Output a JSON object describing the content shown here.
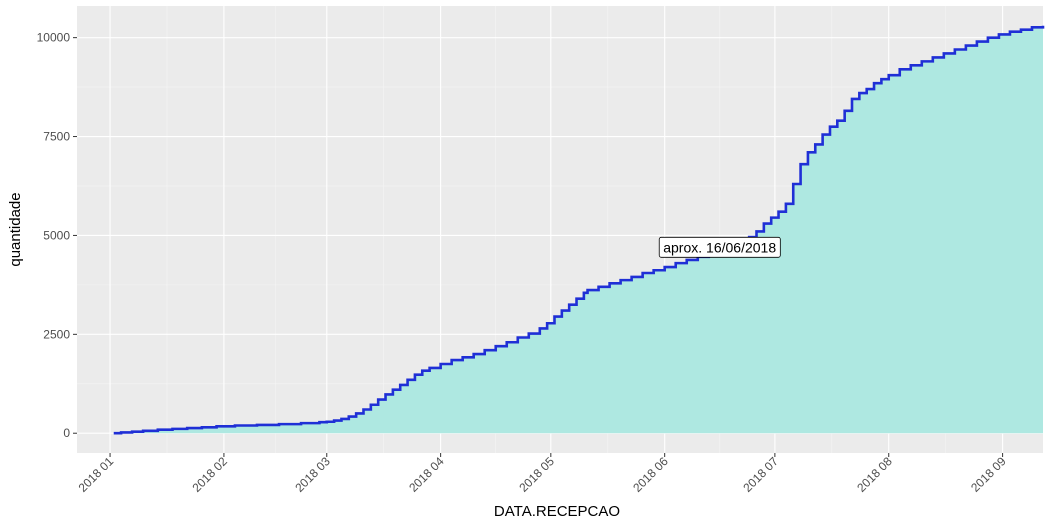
{
  "chart_data": {
    "type": "area",
    "title": "",
    "xlabel": "DATA.RECEPCAO",
    "ylabel": "quantidade",
    "x_type": "date",
    "xlim": [
      "2017-12-23",
      "2018-09-12"
    ],
    "ylim": [
      -500,
      10800
    ],
    "x_ticks": [
      {
        "date": "2018-01-01",
        "label": "2018 01"
      },
      {
        "date": "2018-02-01",
        "label": "2018 02"
      },
      {
        "date": "2018-03-01",
        "label": "2018 03"
      },
      {
        "date": "2018-04-01",
        "label": "2018 04"
      },
      {
        "date": "2018-05-01",
        "label": "2018 05"
      },
      {
        "date": "2018-06-01",
        "label": "2018 06"
      },
      {
        "date": "2018-07-01",
        "label": "2018 07"
      },
      {
        "date": "2018-08-01",
        "label": "2018 08"
      },
      {
        "date": "2018-09-01",
        "label": "2018 09"
      }
    ],
    "y_ticks": [
      {
        "value": 0,
        "label": "0"
      },
      {
        "value": 2500,
        "label": "2500"
      },
      {
        "value": 5000,
        "label": "5000"
      },
      {
        "value": 7500,
        "label": "7500"
      },
      {
        "value": 10000,
        "label": "10000"
      }
    ],
    "grid": true,
    "legend": "none",
    "colors": {
      "panel": "#ebebeb",
      "grid_major": "#ffffff",
      "grid_minor": "#f5f5f5",
      "fill": "#aee8e1",
      "line": "#1f2fd6"
    },
    "series": [
      {
        "step": true,
        "points": [
          [
            "2018-01-02",
            0
          ],
          [
            "2018-01-04",
            20
          ],
          [
            "2018-01-07",
            40
          ],
          [
            "2018-01-10",
            60
          ],
          [
            "2018-01-14",
            90
          ],
          [
            "2018-01-18",
            110
          ],
          [
            "2018-01-22",
            130
          ],
          [
            "2018-01-26",
            150
          ],
          [
            "2018-01-30",
            175
          ],
          [
            "2018-02-04",
            195
          ],
          [
            "2018-02-10",
            210
          ],
          [
            "2018-02-16",
            230
          ],
          [
            "2018-02-22",
            255
          ],
          [
            "2018-02-27",
            280
          ],
          [
            "2018-03-01",
            290
          ],
          [
            "2018-03-03",
            320
          ],
          [
            "2018-03-05",
            360
          ],
          [
            "2018-03-07",
            420
          ],
          [
            "2018-03-09",
            500
          ],
          [
            "2018-03-11",
            600
          ],
          [
            "2018-03-13",
            720
          ],
          [
            "2018-03-15",
            850
          ],
          [
            "2018-03-17",
            980
          ],
          [
            "2018-03-19",
            1100
          ],
          [
            "2018-03-21",
            1220
          ],
          [
            "2018-03-23",
            1350
          ],
          [
            "2018-03-25",
            1480
          ],
          [
            "2018-03-27",
            1580
          ],
          [
            "2018-03-29",
            1650
          ],
          [
            "2018-04-01",
            1750
          ],
          [
            "2018-04-04",
            1850
          ],
          [
            "2018-04-07",
            1920
          ],
          [
            "2018-04-10",
            2000
          ],
          [
            "2018-04-13",
            2100
          ],
          [
            "2018-04-16",
            2200
          ],
          [
            "2018-04-19",
            2300
          ],
          [
            "2018-04-22",
            2420
          ],
          [
            "2018-04-25",
            2520
          ],
          [
            "2018-04-28",
            2650
          ],
          [
            "2018-04-30",
            2780
          ],
          [
            "2018-05-02",
            2950
          ],
          [
            "2018-05-04",
            3100
          ],
          [
            "2018-05-06",
            3250
          ],
          [
            "2018-05-08",
            3400
          ],
          [
            "2018-05-10",
            3550
          ],
          [
            "2018-05-11",
            3620
          ],
          [
            "2018-05-14",
            3700
          ],
          [
            "2018-05-17",
            3790
          ],
          [
            "2018-05-20",
            3870
          ],
          [
            "2018-05-23",
            3950
          ],
          [
            "2018-05-26",
            4050
          ],
          [
            "2018-05-29",
            4120
          ],
          [
            "2018-06-01",
            4200
          ],
          [
            "2018-06-04",
            4300
          ],
          [
            "2018-06-07",
            4380
          ],
          [
            "2018-06-10",
            4460
          ],
          [
            "2018-06-13",
            4540
          ],
          [
            "2018-06-16",
            4620
          ],
          [
            "2018-06-18",
            4700
          ],
          [
            "2018-06-20",
            4800
          ],
          [
            "2018-06-22",
            4880
          ],
          [
            "2018-06-24",
            4960
          ],
          [
            "2018-06-26",
            5100
          ],
          [
            "2018-06-28",
            5300
          ],
          [
            "2018-06-30",
            5450
          ],
          [
            "2018-07-02",
            5600
          ],
          [
            "2018-07-04",
            5800
          ],
          [
            "2018-07-06",
            6300
          ],
          [
            "2018-07-08",
            6800
          ],
          [
            "2018-07-10",
            7100
          ],
          [
            "2018-07-12",
            7300
          ],
          [
            "2018-07-14",
            7550
          ],
          [
            "2018-07-16",
            7750
          ],
          [
            "2018-07-18",
            7900
          ],
          [
            "2018-07-20",
            8150
          ],
          [
            "2018-07-22",
            8450
          ],
          [
            "2018-07-24",
            8600
          ],
          [
            "2018-07-26",
            8700
          ],
          [
            "2018-07-28",
            8850
          ],
          [
            "2018-07-30",
            8950
          ],
          [
            "2018-08-01",
            9050
          ],
          [
            "2018-08-04",
            9200
          ],
          [
            "2018-08-07",
            9300
          ],
          [
            "2018-08-10",
            9400
          ],
          [
            "2018-08-13",
            9500
          ],
          [
            "2018-08-16",
            9600
          ],
          [
            "2018-08-19",
            9700
          ],
          [
            "2018-08-22",
            9800
          ],
          [
            "2018-08-25",
            9900
          ],
          [
            "2018-08-28",
            10000
          ],
          [
            "2018-08-31",
            10080
          ],
          [
            "2018-09-03",
            10150
          ],
          [
            "2018-09-06",
            10200
          ],
          [
            "2018-09-09",
            10260
          ],
          [
            "2018-09-12",
            10300
          ]
        ]
      }
    ],
    "annotations": [
      {
        "date": "2018-06-16",
        "value": 4700,
        "text": "aprox. 16/06/2018"
      }
    ]
  }
}
